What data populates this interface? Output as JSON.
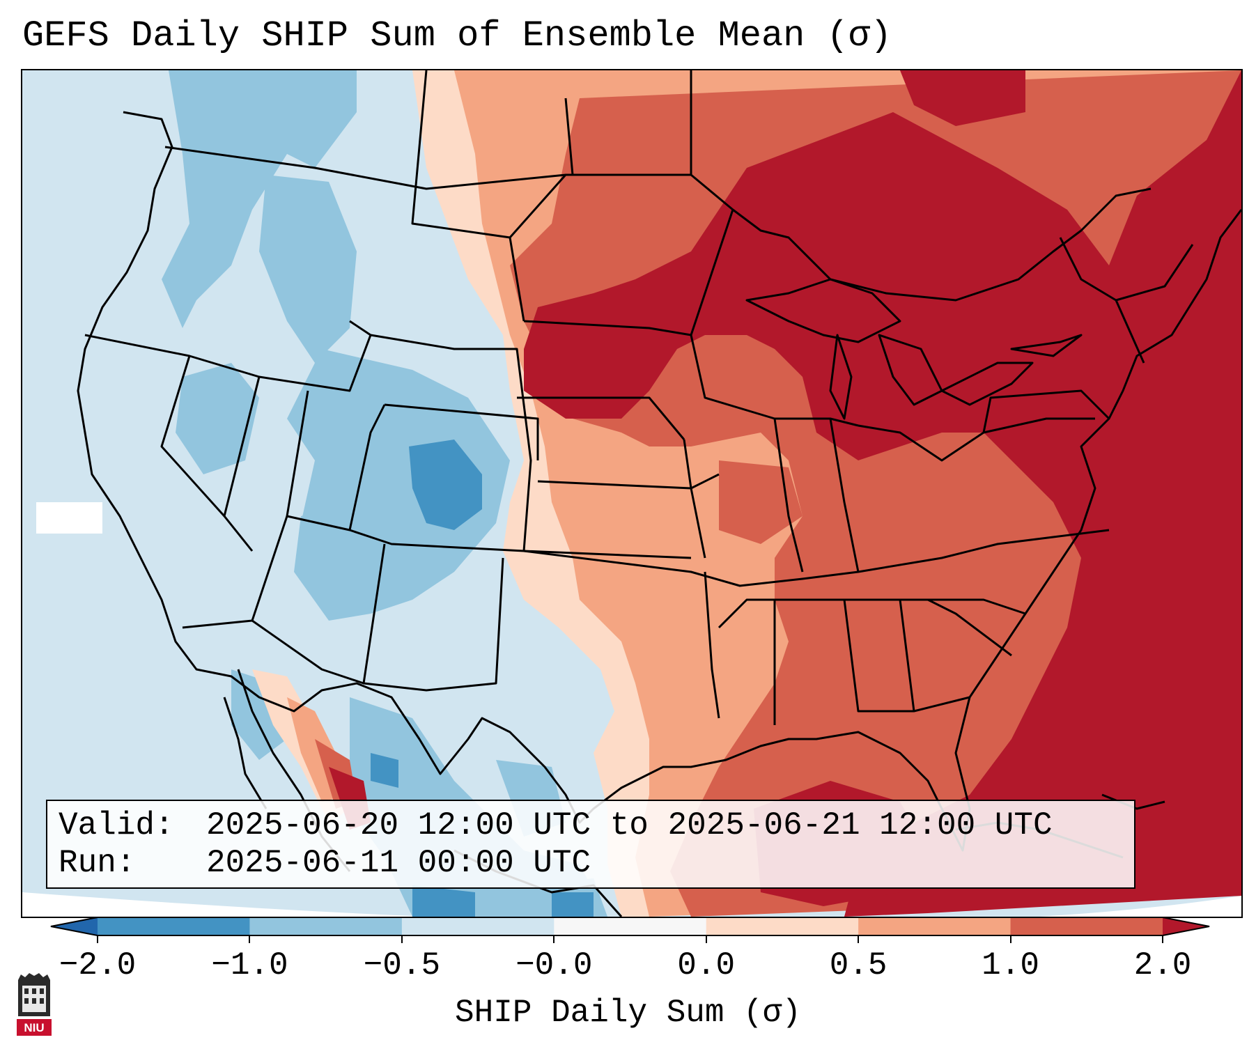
{
  "title": "GEFS Daily SHIP Sum of Ensemble Mean (σ)",
  "info": {
    "valid_label": "Valid:",
    "valid_value": "2025-06-20 12:00 UTC to 2025-06-21 12:00 UTC",
    "run_label": "Run:",
    "run_value": "2025-06-11 00:00 UTC"
  },
  "colorbar": {
    "title": "SHIP Daily Sum (σ)",
    "tick_labels": [
      "−2.0",
      "−1.0",
      "−0.5",
      "−0.0",
      "0.0",
      "0.5",
      "1.0",
      "2.0"
    ],
    "bins": [
      {
        "from": "-inf",
        "to": -2.0,
        "color": "#2166ac"
      },
      {
        "from": -2.0,
        "to": -1.0,
        "color": "#4393c3"
      },
      {
        "from": -1.0,
        "to": -0.5,
        "color": "#92c5de"
      },
      {
        "from": -0.5,
        "to": -0.0,
        "color": "#d1e5f0"
      },
      {
        "from": -0.0,
        "to": 0.0,
        "color": "#f7f7f7"
      },
      {
        "from": 0.0,
        "to": 0.5,
        "color": "#fddbc7"
      },
      {
        "from": 0.5,
        "to": 1.0,
        "color": "#f4a582"
      },
      {
        "from": 1.0,
        "to": 2.0,
        "color": "#d6604d"
      },
      {
        "from": 2.0,
        "to": "inf",
        "color": "#b2182b"
      }
    ]
  },
  "logo": {
    "text": "NIU",
    "color": "#c8102e"
  },
  "colors": {
    "neg_2": "#2166ac",
    "neg_1": "#4393c3",
    "neg_05": "#92c5de",
    "neg_0": "#d1e5f0",
    "zero": "#f7f7f7",
    "pos_0": "#fddbc7",
    "pos_05": "#f4a582",
    "pos_1": "#d6604d",
    "pos_2": "#b2182b"
  }
}
